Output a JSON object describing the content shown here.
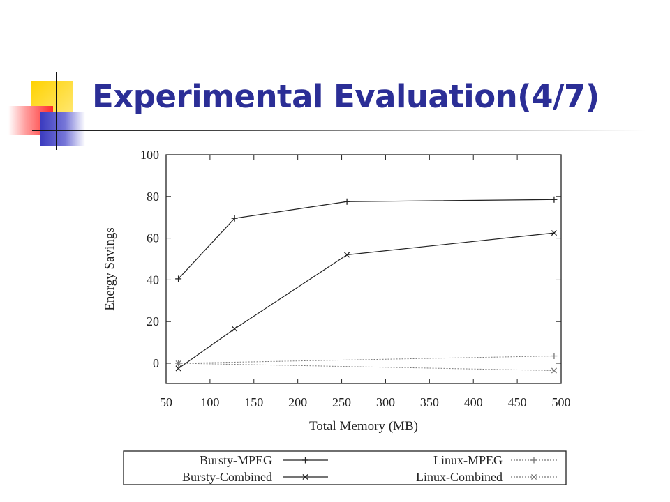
{
  "slide": {
    "title": "Experimental Evaluation(4/7)"
  },
  "theme": {
    "title_color": "#2b2e96",
    "deco_yellow": "#ffd200",
    "deco_red": "#ff2a2a",
    "deco_blue": "#3b3bbf"
  },
  "chart_data": {
    "type": "line",
    "xlabel": "Total Memory (MB)",
    "ylabel": "Energy Savings",
    "xlim": [
      50,
      500
    ],
    "ylim": [
      -10,
      100
    ],
    "xticks": [
      "50",
      "100",
      "150",
      "200",
      "250",
      "300",
      "350",
      "400",
      "450",
      "500"
    ],
    "yticks": [
      "0",
      "20",
      "40",
      "60",
      "80",
      "100"
    ],
    "grid": false,
    "legend_position": "bottom",
    "series": [
      {
        "name": "Bursty-MPEG",
        "marker": "plus",
        "line": "solid",
        "color": "#222222",
        "x": [
          64,
          128,
          256,
          492
        ],
        "y": [
          40.5,
          69.5,
          77.5,
          78.5
        ]
      },
      {
        "name": "Bursty-Combined",
        "marker": "cross",
        "line": "solid",
        "color": "#222222",
        "x": [
          64,
          128,
          256,
          492
        ],
        "y": [
          -2.5,
          16.5,
          52,
          62.5
        ]
      },
      {
        "name": "Linux-MPEG",
        "marker": "plus",
        "line": "dotted",
        "color": "#777777",
        "x": [
          64,
          492
        ],
        "y": [
          0,
          3.5
        ]
      },
      {
        "name": "Linux-Combined",
        "marker": "cross",
        "line": "dotted",
        "color": "#777777",
        "x": [
          64,
          492
        ],
        "y": [
          0,
          -3.5
        ]
      }
    ]
  }
}
